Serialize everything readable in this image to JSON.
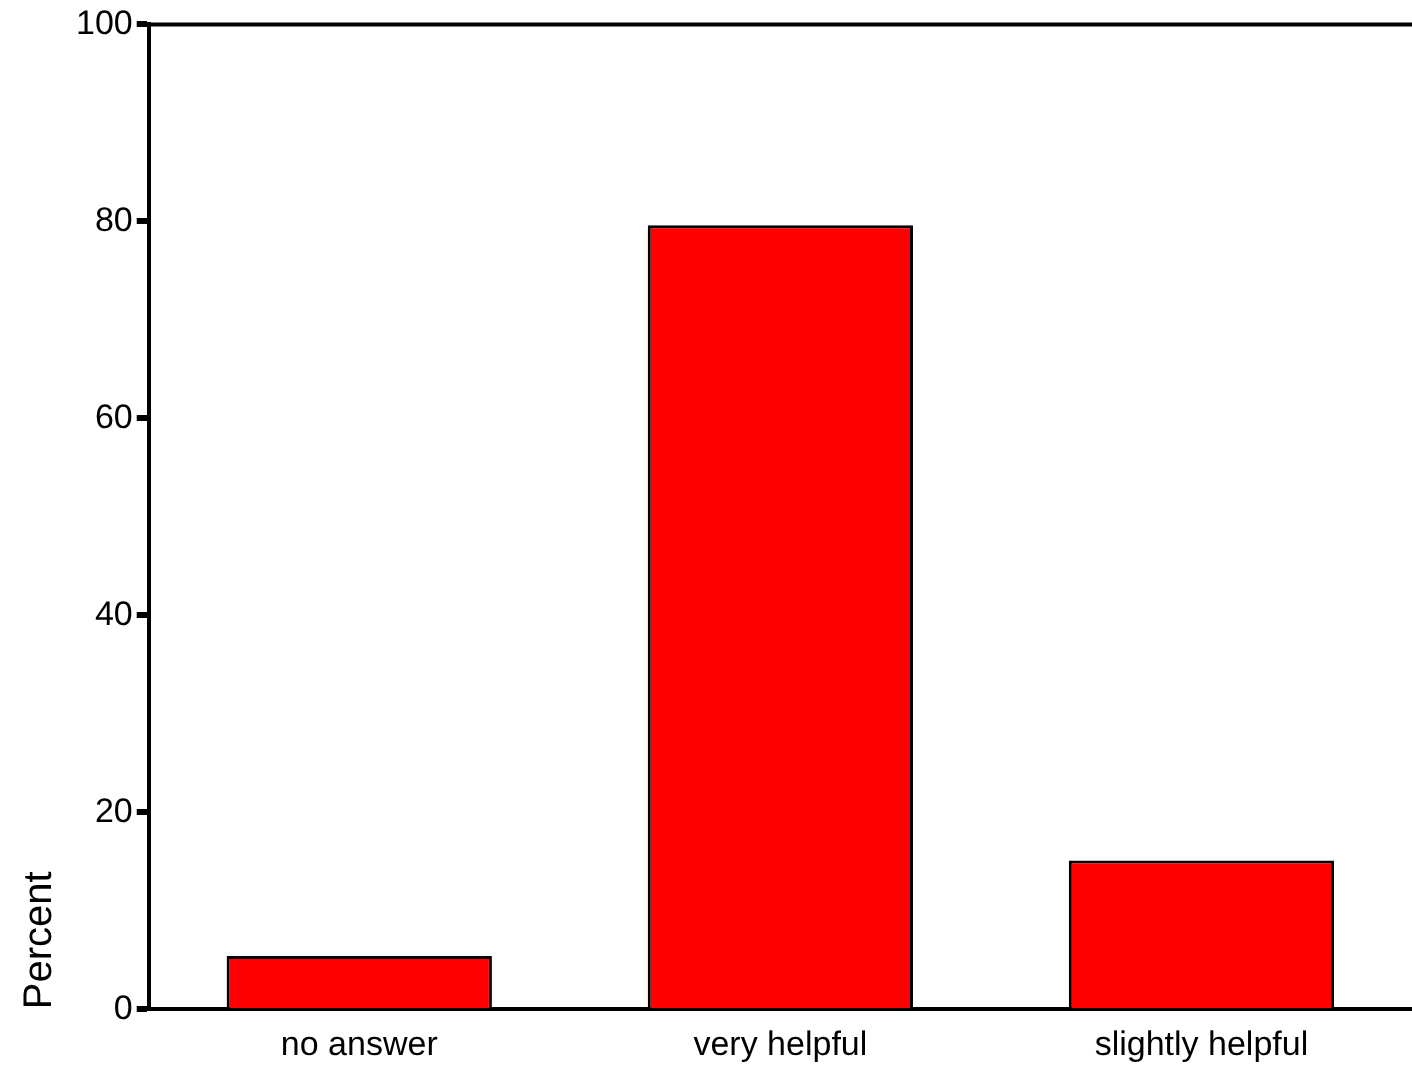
{
  "chart_data": {
    "type": "bar",
    "ylabel": "Percent",
    "categories": [
      "no answer",
      "very helpful",
      "slightly helpful"
    ],
    "values": [
      5.4,
      79.6,
      15.1
    ],
    "color": "#ff0000",
    "ylim": [
      0,
      100
    ],
    "yticks": [
      0,
      20,
      40,
      60,
      80,
      100
    ],
    "grid": false,
    "legend": false
  }
}
